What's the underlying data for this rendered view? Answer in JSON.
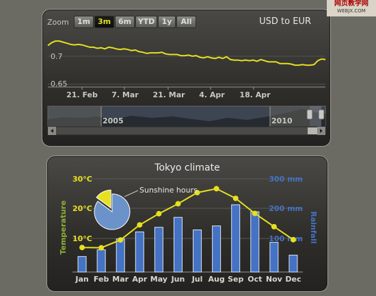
{
  "stock_chart": {
    "zoom_label": "Zoom",
    "zoom_buttons": [
      "1m",
      "3m",
      "6m",
      "YTD",
      "1y",
      "All"
    ],
    "zoom_active": "3m",
    "title": "USD to EUR",
    "y_ticks": [
      "0.7",
      "0.65"
    ],
    "x_ticks": [
      "21. Feb",
      "7. Mar",
      "21. Mar",
      "4. Apr",
      "18. Apr"
    ],
    "navigator_labels": [
      "2005",
      "2010"
    ],
    "line_color": "#e6e020"
  },
  "climate_chart": {
    "title": "Tokyo climate",
    "temp_axis_title": "Temperature",
    "rain_axis_title": "Rainfall",
    "temp_ticks": [
      "30°C",
      "20°C",
      "10°C"
    ],
    "rain_ticks": [
      "300 mm",
      "200 mm",
      "100 mm"
    ],
    "pie_label": "Sunshine hours",
    "temp_color": "#e6e020",
    "rain_color": "#4472c4",
    "temp_axis_color": "#8fae3b"
  },
  "chart_data": [
    {
      "type": "line",
      "title": "USD to EUR",
      "x_tick_labels": [
        "21. Feb",
        "7. Mar",
        "21. Mar",
        "4. Apr",
        "18. Apr"
      ],
      "y_tick_labels": [
        "0.7",
        "0.65"
      ],
      "ylim": [
        0.64,
        0.75
      ],
      "series": [
        {
          "values": [
            0.719,
            0.724,
            0.727,
            0.727,
            0.725,
            0.723,
            0.721,
            0.72,
            0.721,
            0.72,
            0.718,
            0.716,
            0.716,
            0.714,
            0.715,
            0.713,
            0.716,
            0.715,
            0.713,
            0.712,
            0.713,
            0.712,
            0.71,
            0.711,
            0.708,
            0.707,
            0.705,
            0.706,
            0.706,
            0.706,
            0.707,
            0.704,
            0.703,
            0.703,
            0.703,
            0.701,
            0.701,
            0.702,
            0.7,
            0.701,
            0.698,
            0.697,
            0.699,
            0.697,
            0.696,
            0.698,
            0.696,
            0.699,
            0.694,
            0.693,
            0.693,
            0.692,
            0.693,
            0.692,
            0.693,
            0.691,
            0.694,
            0.692,
            0.69,
            0.69,
            0.69,
            0.687,
            0.687,
            0.687,
            0.686,
            0.684,
            0.684,
            0.685,
            0.684,
            0.684,
            0.685,
            0.692,
            0.695,
            0.694
          ]
        }
      ]
    },
    {
      "type": "bar",
      "title": "Tokyo climate",
      "categories": [
        "Jan",
        "Feb",
        "Mar",
        "Apr",
        "May",
        "Jun",
        "Jul",
        "Aug",
        "Sep",
        "Oct",
        "Nov",
        "Dec"
      ],
      "series": [
        {
          "name": "Rainfall",
          "type": "bar",
          "values": [
            49.9,
            71.5,
            106.4,
            129.2,
            144.0,
            176.0,
            135.6,
            148.5,
            216.4,
            194.1,
            95.6,
            54.4
          ]
        },
        {
          "name": "Temperature",
          "type": "line",
          "values": [
            7.0,
            6.9,
            9.5,
            14.5,
            18.2,
            21.5,
            25.2,
            26.5,
            23.3,
            18.3,
            13.9,
            9.6
          ]
        }
      ],
      "temp_ylim": [
        0,
        32
      ],
      "rain_ylim": [
        0,
        320
      ],
      "pie": {
        "name": "Sunshine hours",
        "values": [
          85,
          15
        ]
      }
    }
  ]
}
